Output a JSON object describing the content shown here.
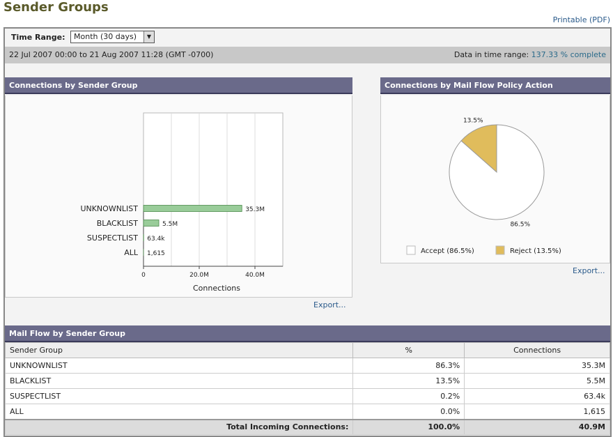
{
  "page": {
    "title": "Sender Groups",
    "printable_label": "Printable (PDF)"
  },
  "time_range": {
    "label": "Time Range:",
    "selected": "Month (30 days)",
    "range_text": "22 Jul 2007 00:00 to 21 Aug 2007 11:28 (GMT -0700)",
    "data_label": "Data in time range:",
    "data_value": "137.33 % complete"
  },
  "connections_by_group": {
    "header": "Connections by Sender Group",
    "export_label": "Export...",
    "chart_data": {
      "type": "bar",
      "orientation": "horizontal",
      "categories": [
        "UNKNOWNLIST",
        "BLACKLIST",
        "SUSPECTLIST",
        "ALL"
      ],
      "values": [
        35300000,
        5500000,
        63400,
        1615
      ],
      "value_labels": [
        "35.3M",
        "5.5M",
        "63.4k",
        "1,615"
      ],
      "xlabel": "Connections",
      "xticks": [
        "0",
        "20.0M",
        "40.0M"
      ],
      "xlim": [
        0,
        50000000
      ],
      "grid": true,
      "bar_color": "#99cc99"
    }
  },
  "policy_action": {
    "header": "Connections by Mail Flow Policy Action",
    "export_label": "Export...",
    "chart_data": {
      "type": "pie",
      "slices": [
        {
          "label": "Accept (86.5%)",
          "value": 86.5,
          "value_label": "86.5%",
          "color": "#ffffff"
        },
        {
          "label": "Reject (13.5%)",
          "value": 13.5,
          "value_label": "13.5%",
          "color": "#e0bc5c"
        }
      ]
    }
  },
  "mail_flow": {
    "header": "Mail Flow by Sender Group",
    "columns": [
      "Sender Group",
      "%",
      "Connections"
    ],
    "rows": [
      [
        "UNKNOWNLIST",
        "86.3%",
        "35.3M"
      ],
      [
        "BLACKLIST",
        "13.5%",
        "5.5M"
      ],
      [
        "SUSPECTLIST",
        "0.2%",
        "63.4k"
      ],
      [
        "ALL",
        "0.0%",
        "1,615"
      ]
    ],
    "total": [
      "Total Incoming Connections:",
      "100.0%",
      "40.9M"
    ]
  }
}
